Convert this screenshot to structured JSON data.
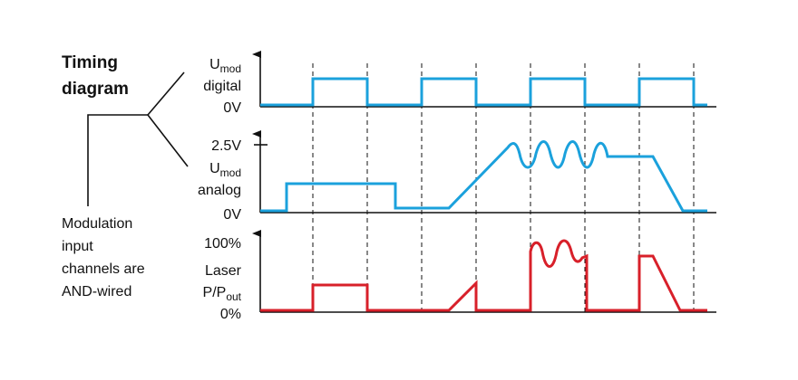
{
  "title": [
    "Timing",
    "diagram"
  ],
  "digital": {
    "label": {
      "main": "U",
      "sub": "mod"
    },
    "caption": "digital",
    "zero": "0V"
  },
  "analog": {
    "top": "2.5V",
    "label": {
      "main": "U",
      "sub": "mod"
    },
    "caption": "analog",
    "zero": "0V"
  },
  "laser": {
    "top": "100%",
    "caption": "Laser",
    "label": {
      "main": "P/P",
      "sub": "out"
    },
    "zero": "0%"
  },
  "note": [
    "Modulation",
    "input",
    "channels are",
    "AND-wired"
  ]
}
